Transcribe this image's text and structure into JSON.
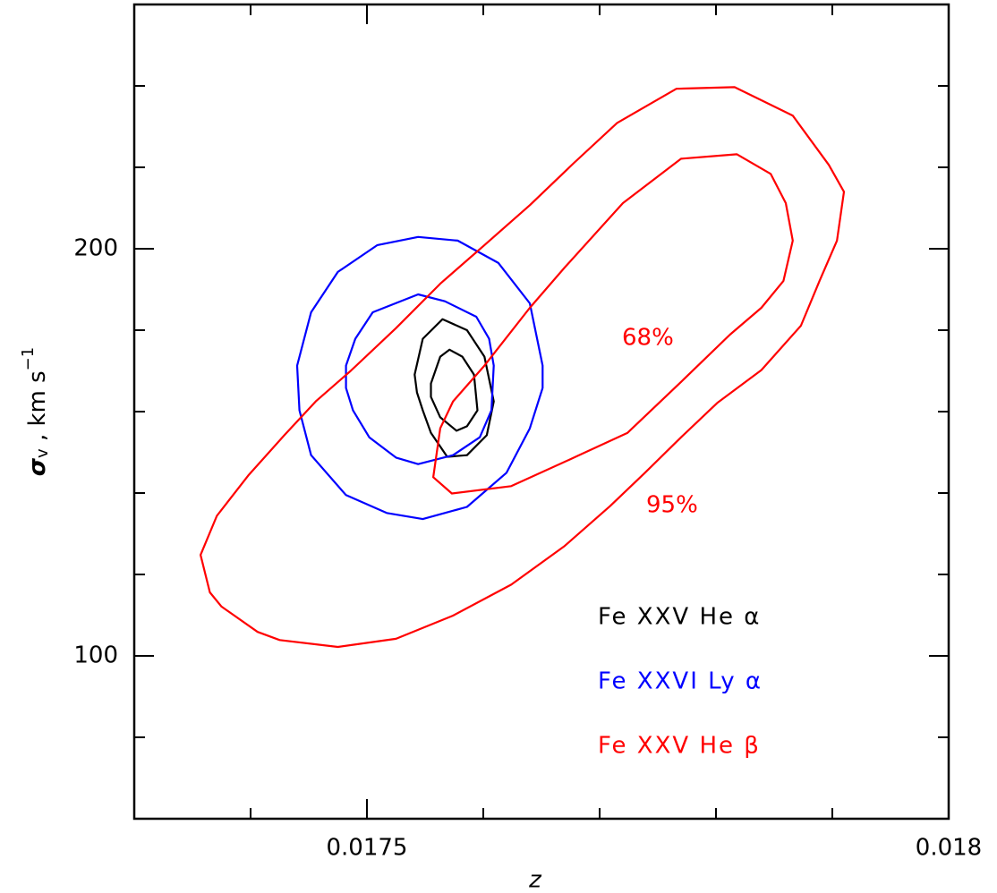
{
  "chart_data": {
    "type": "contour",
    "xlabel": "z",
    "ylabel": {
      "symbol": "σ",
      "subscript": "v",
      "text": " ,  km s",
      "superscript": "−1"
    },
    "xlim": [
      0.0173,
      0.018
    ],
    "ylim": [
      60,
      260
    ],
    "xticks": [
      0.0175,
      0.018
    ],
    "yticks": [
      100,
      200
    ],
    "xminorticks": [
      0.0174,
      0.0176,
      0.0177,
      0.0178,
      0.0179
    ],
    "yminorticks": [
      80,
      120,
      140,
      160,
      180,
      220,
      240
    ],
    "annotations": [
      "68%",
      "95%"
    ],
    "series": [
      {
        "name": "Fe XXV He α",
        "color": "#000000",
        "contours": [
          {
            "x": [
              0.017541,
              0.017548,
              0.017565,
              0.017586,
              0.017601,
              0.017609,
              0.017603,
              0.017586,
              0.017569,
              0.017555,
              0.017548,
              0.017543
            ],
            "y": [
              169.1,
              177.9,
              182.7,
              180.0,
              173.5,
              162.5,
              154.2,
              149.3,
              148.9,
              154.8,
              160.3,
              164.7
            ]
          },
          {
            "x": [
              0.017555,
              0.017563,
              0.017571,
              0.017582,
              0.017592,
              0.017595,
              0.017586,
              0.017577,
              0.017563,
              0.017555
            ],
            "y": [
              166.9,
              173.5,
              175.2,
              173.5,
              169.1,
              160.3,
              156.4,
              155.3,
              158.6,
              163.6
            ]
          }
        ]
      },
      {
        "name": "Fe XXVI Ly α",
        "color": "#0000ff",
        "contours": [
          {
            "x": [
              0.01744,
              0.017452,
              0.017475,
              0.017509,
              0.017544,
              0.017578,
              0.017613,
              0.01764,
              0.017651,
              0.017651,
              0.01764,
              0.01762,
              0.017586,
              0.017548,
              0.017517,
              0.017482,
              0.017452,
              0.017442
            ],
            "y": [
              171.3,
              184.4,
              194.3,
              200.9,
              202.9,
              202.0,
              196.5,
              186.6,
              171.3,
              165.8,
              155.9,
              145.0,
              136.6,
              133.6,
              135.1,
              139.5,
              149.3,
              160.3
            ]
          },
          {
            "x": [
              0.017482,
              0.01749,
              0.017505,
              0.017544,
              0.017567,
              0.017594,
              0.017605,
              0.017609,
              0.017607,
              0.017597,
              0.017574,
              0.017544,
              0.017525,
              0.017502,
              0.017488,
              0.017482
            ],
            "y": [
              171.3,
              177.9,
              184.4,
              188.8,
              187.1,
              183.3,
              177.9,
              171.3,
              160.3,
              153.7,
              149.3,
              147.1,
              148.7,
              153.7,
              160.3,
              165.8
            ]
          }
        ]
      },
      {
        "name": "Fe XXV He β",
        "color": "#ff0000",
        "contours": [
          {
            "x": [
              0.017357,
              0.017365,
              0.017375,
              0.017406,
              0.017425,
              0.017475,
              0.017525,
              0.017574,
              0.017624,
              0.01767,
              0.017709,
              0.017739,
              0.01777,
              0.017801,
              0.017839,
              0.017873,
              0.017889,
              0.017904,
              0.01791,
              0.017897,
              0.017866,
              0.017816,
              0.017766,
              0.017715,
              0.017678,
              0.01764,
              0.017601,
              0.017563,
              0.017525,
              0.017486,
              0.017456,
              0.017429,
              0.017398,
              0.017371
            ],
            "y": [
              124.8,
              115.6,
              112.1,
              105.9,
              103.9,
              102.2,
              104.2,
              109.9,
              117.5,
              127.0,
              136.8,
              145.0,
              153.7,
              162.1,
              170.2,
              181.1,
              192.1,
              202.0,
              214.0,
              220.6,
              232.7,
              239.7,
              239.3,
              230.9,
              221.1,
              210.7,
              200.9,
              191.4,
              180.5,
              170.0,
              162.5,
              154.2,
              144.3,
              134.4
            ]
          },
          {
            "x": [
              0.017557,
              0.017573,
              0.017624,
              0.017674,
              0.017724,
              0.01777,
              0.017812,
              0.017839,
              0.017858,
              0.017866,
              0.01786,
              0.017847,
              0.017818,
              0.01777,
              0.01772,
              0.01767,
              0.01764,
              0.017601,
              0.017574,
              0.017563
            ],
            "y": [
              143.9,
              139.9,
              141.7,
              148.2,
              154.8,
              167.3,
              178.9,
              185.5,
              192.1,
              202.0,
              211.2,
              218.4,
              223.2,
              222.1,
              211.2,
              195.4,
              185.5,
              171.3,
              162.5,
              155.9
            ]
          }
        ]
      }
    ]
  }
}
